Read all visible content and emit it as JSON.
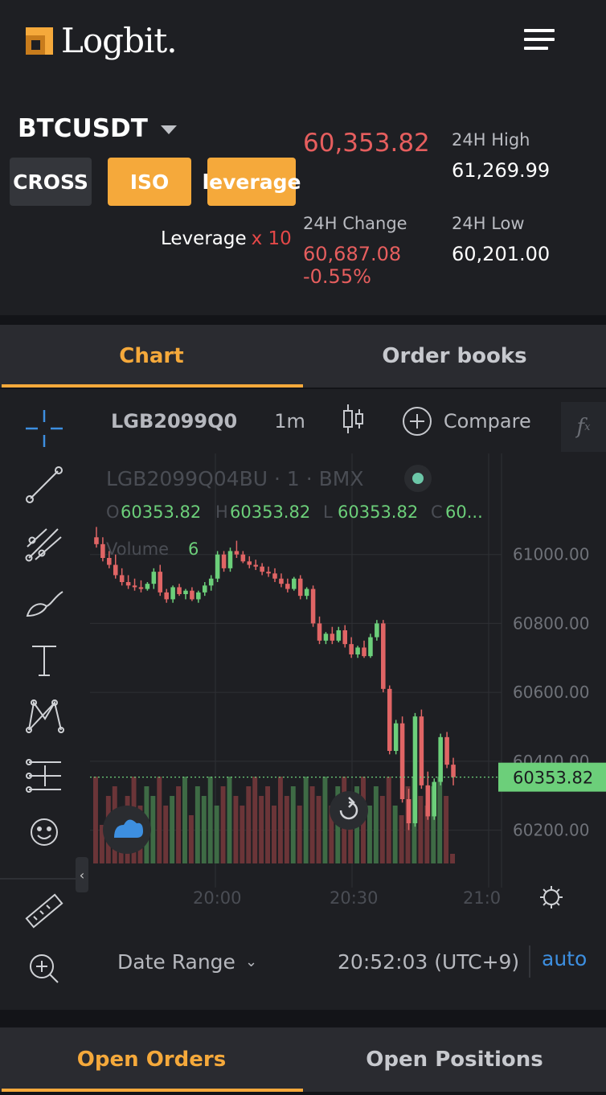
{
  "header": {
    "logo_text": "Logbit.",
    "brand_color": "#f5a93b",
    "menu_icon": "hamburger-menu-icon"
  },
  "market": {
    "symbol": "BTCUSDT",
    "modes": {
      "cross": "CROSS",
      "iso": "ISO",
      "leverage": "leverage"
    },
    "leverage_label": "Leverage",
    "leverage_value": "x 10",
    "last_price": "60,353.82",
    "high_label": "24H High",
    "high_value": "61,269.99",
    "change_label": "24H Change",
    "change_value": "60,687.08",
    "change_pct": "-0.55%",
    "low_label": "24H Low",
    "low_value": "60,201.00",
    "down_color": "#e65e5e"
  },
  "view_tabs": {
    "chart": "Chart",
    "order_books": "Order books"
  },
  "chart_toolbar": {
    "symbol": "LGB2099Q0",
    "interval": "1m",
    "compare": "Compare",
    "fx": "f"
  },
  "legend": {
    "title": "LGB2099Q04BU · 1 · BMX",
    "ohlc_o_label": "O",
    "ohlc_o": "60353.82",
    "ohlc_h_label": "H",
    "ohlc_h": "60353.82",
    "ohlc_l_label": "L",
    "ohlc_l": "60353.82",
    "ohlc_c_label": "C",
    "ohlc_c": "60...",
    "volume_label": "Volume",
    "volume_value": "6"
  },
  "chart_data": {
    "type": "candlestick",
    "y_ticks": [
      "61000.00",
      "60800.00",
      "60600.00",
      "60400.00",
      "60200.00"
    ],
    "x_ticks": [
      "20:00",
      "20:30",
      "21:0"
    ],
    "ylim": [
      60150,
      61200
    ],
    "last_price_label": "60353.82",
    "up_color": "#6ccf7a",
    "down_color": "#e06565",
    "candles_ohlc": [
      [
        61050,
        61080,
        61020,
        61030
      ],
      [
        61030,
        61050,
        60980,
        60990
      ],
      [
        60990,
        61010,
        60960,
        60970
      ],
      [
        60970,
        61000,
        60930,
        60940
      ],
      [
        60940,
        60960,
        60910,
        60920
      ],
      [
        60920,
        60940,
        60900,
        60910
      ],
      [
        60910,
        60930,
        60895,
        60905
      ],
      [
        60905,
        60925,
        60890,
        60900
      ],
      [
        60900,
        60920,
        60895,
        60915
      ],
      [
        60915,
        60960,
        60900,
        60950
      ],
      [
        60950,
        60970,
        60880,
        60890
      ],
      [
        60890,
        60900,
        60860,
        60870
      ],
      [
        60870,
        60910,
        60860,
        60905
      ],
      [
        60905,
        60915,
        60880,
        60885
      ],
      [
        60885,
        60900,
        60870,
        60895
      ],
      [
        60895,
        60905,
        60865,
        60870
      ],
      [
        60870,
        60895,
        60860,
        60890
      ],
      [
        60890,
        60920,
        60880,
        60910
      ],
      [
        60910,
        60940,
        60895,
        60930
      ],
      [
        60930,
        61010,
        60920,
        61000
      ],
      [
        61000,
        61010,
        60950,
        60960
      ],
      [
        60960,
        61020,
        60950,
        61010
      ],
      [
        61010,
        61040,
        60990,
        61000
      ],
      [
        61000,
        61010,
        60975,
        60980
      ],
      [
        60980,
        60995,
        60960,
        60970
      ],
      [
        60970,
        60985,
        60955,
        60965
      ],
      [
        60965,
        60975,
        60940,
        60950
      ],
      [
        60950,
        60965,
        60935,
        60945
      ],
      [
        60945,
        60960,
        60920,
        60930
      ],
      [
        60930,
        60945,
        60905,
        60915
      ],
      [
        60915,
        60930,
        60890,
        60900
      ],
      [
        60900,
        60935,
        60895,
        60930
      ],
      [
        60930,
        60940,
        60870,
        60880
      ],
      [
        60880,
        60905,
        60870,
        60900
      ],
      [
        60900,
        60910,
        60790,
        60800
      ],
      [
        60800,
        60820,
        60740,
        60750
      ],
      [
        60750,
        60775,
        60740,
        60770
      ],
      [
        60770,
        60790,
        60740,
        60750
      ],
      [
        60750,
        60790,
        60745,
        60780
      ],
      [
        60780,
        60795,
        60730,
        60740
      ],
      [
        60740,
        60760,
        60700,
        60710
      ],
      [
        60710,
        60735,
        60700,
        60730
      ],
      [
        60730,
        60750,
        60700,
        60705
      ],
      [
        60705,
        60770,
        60700,
        60760
      ],
      [
        60760,
        60810,
        60750,
        60800
      ],
      [
        60800,
        60810,
        60600,
        60610
      ],
      [
        60610,
        60620,
        60420,
        60430
      ],
      [
        60430,
        60520,
        60420,
        60510
      ],
      [
        60510,
        60530,
        60280,
        60290
      ],
      [
        60290,
        60320,
        60200,
        60220
      ],
      [
        60220,
        60540,
        60210,
        60530
      ],
      [
        60530,
        60550,
        60320,
        60330
      ],
      [
        60330,
        60370,
        60230,
        60240
      ],
      [
        60240,
        60350,
        60230,
        60340
      ],
      [
        60340,
        60480,
        60330,
        60470
      ],
      [
        60470,
        60485,
        60380,
        60390
      ],
      [
        60390,
        60410,
        60330,
        60353.82
      ]
    ],
    "volume_relative": [
      0.9,
      0.4,
      0.7,
      0.8,
      0.5,
      0.7,
      0.9,
      0.6,
      0.8,
      0.7,
      0.9,
      0.6,
      0.7,
      0.8,
      0.9,
      0.5,
      0.8,
      0.7,
      0.9,
      0.6,
      0.8,
      0.9,
      0.7,
      0.6,
      0.8,
      0.9,
      0.7,
      0.8,
      0.6,
      0.9,
      0.7,
      0.8,
      0.6,
      0.9,
      0.8,
      0.7,
      0.9,
      0.6,
      0.8,
      0.9,
      0.7,
      0.8,
      0.9,
      0.6,
      0.8,
      0.7,
      0.9,
      0.6,
      0.5,
      0.8,
      0.9,
      0.7,
      0.6,
      0.8,
      0.9,
      0.7,
      0.1
    ]
  },
  "bottom_toolbar": {
    "date_range": "Date Range",
    "time": "20:52:03 (UTC+9)",
    "auto": "auto"
  },
  "bottom_tabs": {
    "open_orders": "Open Orders",
    "open_positions": "Open Positions"
  }
}
